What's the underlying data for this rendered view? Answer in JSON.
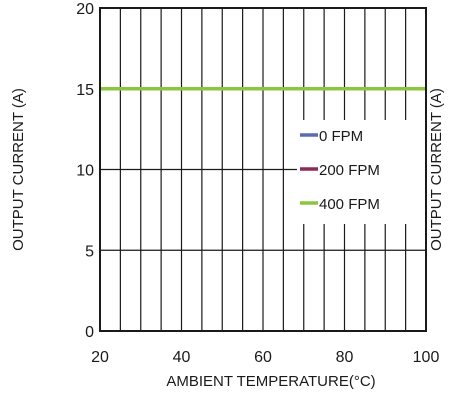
{
  "chart_data": {
    "type": "line",
    "title": "",
    "xlabel": "AMBIENT TEMPERATURE(°C)",
    "ylabel": "OUTPUT CURRENT (A)",
    "ylabel_right": "OUTPUT CURRENT (A)",
    "xlim": [
      20,
      100
    ],
    "ylim": [
      0,
      20
    ],
    "x_ticks": [
      20,
      40,
      60,
      80,
      100
    ],
    "y_ticks": [
      0,
      5,
      10,
      15,
      20
    ],
    "grid": true,
    "legend_position": "right",
    "series": [
      {
        "name": "0 FPM",
        "color": "#5b6bb3",
        "x": [
          20,
          100
        ],
        "y": [
          15,
          15
        ]
      },
      {
        "name": "200 FPM",
        "color": "#8e2a5a",
        "x": [
          20,
          100
        ],
        "y": [
          15,
          15
        ]
      },
      {
        "name": "400 FPM",
        "color": "#8cc63f",
        "x": [
          20,
          100
        ],
        "y": [
          15,
          15
        ]
      }
    ]
  }
}
